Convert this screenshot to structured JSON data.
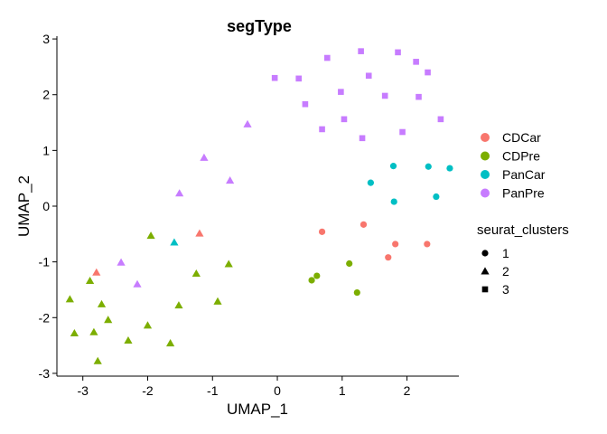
{
  "chart_data": {
    "type": "scatter",
    "title": "segType",
    "xlabel": "UMAP_1",
    "ylabel": "UMAP_2",
    "xlim": [
      -3.4,
      2.8
    ],
    "ylim": [
      -3.05,
      3.05
    ],
    "xticks": [
      -3,
      -2,
      -1,
      0,
      1,
      2
    ],
    "yticks": [
      -3,
      -2,
      -1,
      0,
      1,
      2,
      3
    ],
    "grid": false,
    "legend_placement": "right",
    "color_legend": {
      "title": "",
      "items": [
        {
          "name": "CDCar",
          "color": "#F8766D"
        },
        {
          "name": "CDPre",
          "color": "#7CAE00"
        },
        {
          "name": "PanCar",
          "color": "#00BFC4"
        },
        {
          "name": "PanPre",
          "color": "#C77CFF"
        }
      ]
    },
    "shape_legend": {
      "title": "seurat_clusters",
      "items": [
        {
          "name": "1",
          "shape": "circle"
        },
        {
          "name": "2",
          "shape": "triangle"
        },
        {
          "name": "3",
          "shape": "square"
        }
      ]
    },
    "series": [
      {
        "segType": "CDCar",
        "cluster": "1",
        "color": "#F8766D",
        "shape": "circle",
        "points": [
          [
            0.69,
            -0.46
          ],
          [
            1.33,
            -0.33
          ],
          [
            1.71,
            -0.92
          ],
          [
            1.82,
            -0.68
          ],
          [
            2.31,
            -0.68
          ]
        ]
      },
      {
        "segType": "CDCar",
        "cluster": "2",
        "color": "#F8766D",
        "shape": "triangle",
        "points": [
          [
            -2.79,
            -1.19
          ],
          [
            -1.2,
            -0.49
          ]
        ]
      },
      {
        "segType": "CDPre",
        "cluster": "1",
        "color": "#7CAE00",
        "shape": "circle",
        "points": [
          [
            0.53,
            -1.33
          ],
          [
            0.61,
            -1.25
          ],
          [
            1.11,
            -1.03
          ],
          [
            1.23,
            -1.55
          ]
        ]
      },
      {
        "segType": "CDPre",
        "cluster": "2",
        "color": "#7CAE00",
        "shape": "triangle",
        "points": [
          [
            -3.2,
            -1.67
          ],
          [
            -3.13,
            -2.28
          ],
          [
            -2.89,
            -1.34
          ],
          [
            -2.83,
            -2.26
          ],
          [
            -2.77,
            -2.78
          ],
          [
            -2.71,
            -1.76
          ],
          [
            -2.61,
            -2.04
          ],
          [
            -2.3,
            -2.41
          ],
          [
            -2.0,
            -2.14
          ],
          [
            -1.95,
            -0.53
          ],
          [
            -1.65,
            -2.46
          ],
          [
            -1.52,
            -1.78
          ],
          [
            -1.25,
            -1.21
          ],
          [
            -0.92,
            -1.71
          ],
          [
            -0.75,
            -1.04
          ]
        ]
      },
      {
        "segType": "PanCar",
        "cluster": "1",
        "color": "#00BFC4",
        "shape": "circle",
        "points": [
          [
            1.44,
            0.42
          ],
          [
            1.79,
            0.72
          ],
          [
            1.8,
            0.08
          ],
          [
            2.33,
            0.71
          ],
          [
            2.45,
            0.17
          ],
          [
            2.66,
            0.68
          ]
        ]
      },
      {
        "segType": "PanCar",
        "cluster": "2",
        "color": "#00BFC4",
        "shape": "triangle",
        "points": [
          [
            -1.59,
            -0.65
          ]
        ]
      },
      {
        "segType": "PanPre",
        "cluster": "2",
        "color": "#C77CFF",
        "shape": "triangle",
        "points": [
          [
            -2.41,
            -1.01
          ],
          [
            -2.16,
            -1.4
          ],
          [
            -1.51,
            0.23
          ],
          [
            -1.13,
            0.87
          ],
          [
            -0.73,
            0.46
          ],
          [
            -0.46,
            1.47
          ]
        ]
      },
      {
        "segType": "PanPre",
        "cluster": "3",
        "color": "#C77CFF",
        "shape": "square",
        "points": [
          [
            -0.04,
            2.3
          ],
          [
            0.33,
            2.29
          ],
          [
            0.43,
            1.83
          ],
          [
            0.69,
            1.38
          ],
          [
            0.77,
            2.66
          ],
          [
            0.98,
            2.05
          ],
          [
            1.03,
            1.56
          ],
          [
            1.29,
            2.78
          ],
          [
            1.31,
            1.22
          ],
          [
            1.41,
            2.34
          ],
          [
            1.66,
            1.98
          ],
          [
            1.86,
            2.76
          ],
          [
            1.93,
            1.33
          ],
          [
            2.14,
            2.59
          ],
          [
            2.18,
            1.96
          ],
          [
            2.32,
            2.4
          ],
          [
            2.52,
            1.56
          ]
        ]
      }
    ]
  }
}
